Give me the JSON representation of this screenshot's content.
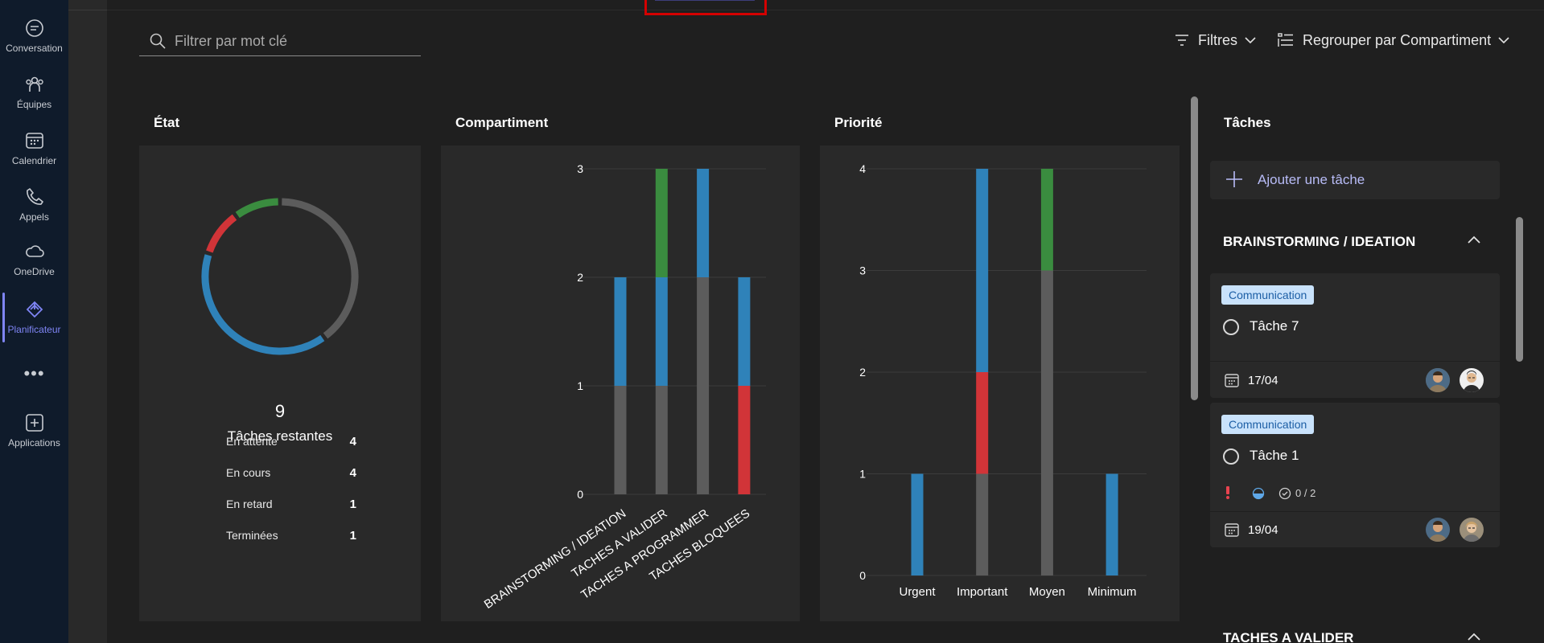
{
  "rail": {
    "items": [
      {
        "label": "Conversation",
        "icon": "chat-icon"
      },
      {
        "label": "Équipes",
        "icon": "teams-icon"
      },
      {
        "label": "Calendrier",
        "icon": "calendar-icon"
      },
      {
        "label": "Appels",
        "icon": "phone-icon"
      },
      {
        "label": "OneDrive",
        "icon": "cloud-icon"
      },
      {
        "label": "Planificateur",
        "icon": "planner-icon",
        "active": true
      },
      {
        "label": "Applications",
        "icon": "add-apps-icon"
      }
    ],
    "more": "•••"
  },
  "toolbar": {
    "search_placeholder": "Filtrer par mot clé",
    "filters_label": "Filtres",
    "group_label": "Regrouper par Compartiment"
  },
  "state_card": {
    "title": "État",
    "remaining_count": "9",
    "remaining_label": "Tâches restantes",
    "legend": [
      {
        "label": "En attente",
        "value": "4",
        "color": "#5c5c5c"
      },
      {
        "label": "En cours",
        "value": "4",
        "color": "#2f82b9"
      },
      {
        "label": "En retard",
        "value": "1",
        "color": "#d13438"
      },
      {
        "label": "Terminées",
        "value": "1",
        "color": "#3a8c3f"
      }
    ]
  },
  "bucket_card": {
    "title": "Compartiment",
    "chart_data": {
      "type": "bar",
      "stacked": true,
      "categories": [
        "BRAINSTORMING / IDEATION",
        "TACHES A VALIDER",
        "TACHES A PROGRAMMER",
        "TACHES BLOQUEES"
      ],
      "series": [
        {
          "color": "#5c5c5c",
          "values": [
            1,
            1,
            2,
            0
          ]
        },
        {
          "color": "#d13438",
          "values": [
            0,
            0,
            0,
            1
          ]
        },
        {
          "color": "#2f82b9",
          "values": [
            1,
            1,
            1,
            1
          ]
        },
        {
          "color": "#3a8c3f",
          "values": [
            0,
            1,
            0,
            0
          ]
        }
      ],
      "yticks": [
        "0",
        "1",
        "2",
        "3"
      ],
      "ylim": [
        0,
        3
      ]
    }
  },
  "priority_card": {
    "title": "Priorité",
    "chart_data": {
      "type": "bar",
      "stacked": true,
      "categories": [
        "Urgent",
        "Important",
        "Moyen",
        "Minimum"
      ],
      "series": [
        {
          "color": "#5c5c5c",
          "values": [
            0,
            1,
            3,
            0
          ]
        },
        {
          "color": "#d13438",
          "values": [
            0,
            1,
            0,
            0
          ]
        },
        {
          "color": "#2f82b9",
          "values": [
            1,
            2,
            0,
            1
          ]
        },
        {
          "color": "#3a8c3f",
          "values": [
            0,
            0,
            1,
            0
          ]
        }
      ],
      "yticks": [
        "0",
        "1",
        "2",
        "3",
        "4"
      ],
      "ylim": [
        0,
        4
      ]
    }
  },
  "tasks": {
    "title": "Tâches",
    "add_label": "Ajouter une tâche",
    "bucket1": "BRAINSTORMING / IDEATION",
    "bucket2": "TACHES A VALIDER",
    "items": [
      {
        "tag": "Communication",
        "name": "Tâche 7",
        "date": "17/04"
      },
      {
        "tag": "Communication",
        "name": "Tâche 1",
        "date": "19/04",
        "checklist": "0 / 2"
      }
    ]
  }
}
